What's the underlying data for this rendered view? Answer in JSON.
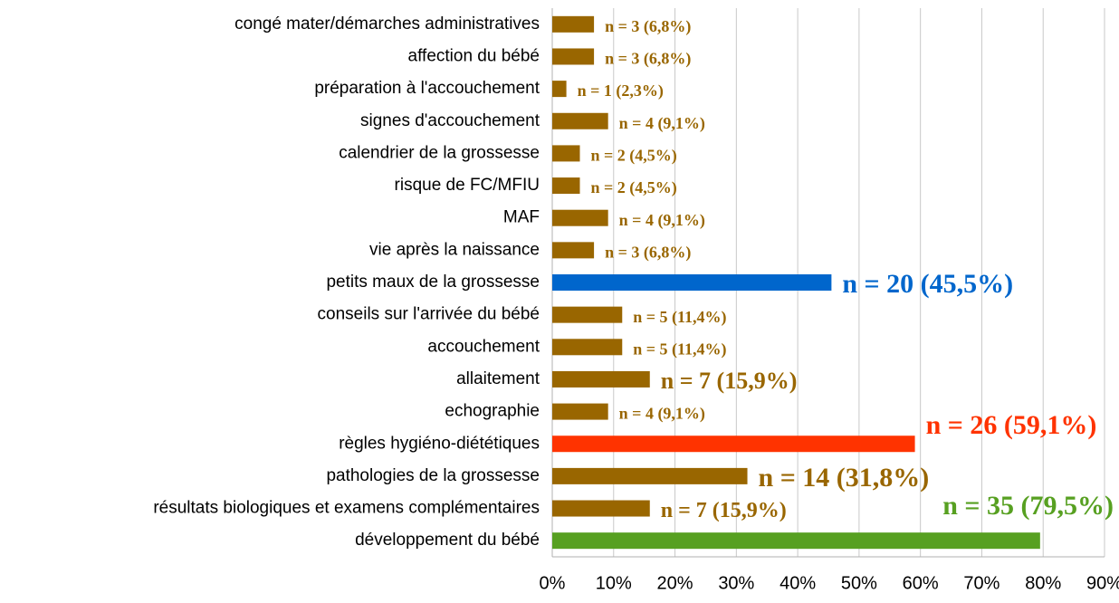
{
  "chart_data": {
    "type": "bar",
    "orientation": "horizontal",
    "categories": [
      "congé mater/démarches administratives",
      "affection du bébé",
      "préparation à l'accouchement",
      "signes d'accouchement",
      "calendrier de la grossesse",
      "risque de FC/MFIU",
      "MAF",
      "vie après la naissance",
      "petits maux de la grossesse",
      "conseils sur l'arrivée du bébé",
      "accouchement",
      "allaitement",
      "echographie",
      "règles hygiéno-diététiques",
      "pathologies de la grossesse",
      "résultats biologiques et examens complémentaires",
      "développement du bébé"
    ],
    "values": [
      6.8,
      6.8,
      2.3,
      9.1,
      4.5,
      4.5,
      9.1,
      6.8,
      45.5,
      11.4,
      11.4,
      15.9,
      9.1,
      59.1,
      31.8,
      15.9,
      79.5
    ],
    "value_labels": [
      "n = 3 (6,8%)",
      "n = 3 (6,8%)",
      "n = 1 (2,3%)",
      "n = 4 (9,1%)",
      "n = 2 (4,5%)",
      "n = 2 (4,5%)",
      "n = 4 (9,1%)",
      "n = 3 (6,8%)",
      "n = 20 (45,5%)",
      "n = 5 (11,4%)",
      "n = 5 (11,4%)",
      "n = 7 (15,9%)",
      "n = 4 (9,1%)",
      "n = 26 (59,1%)",
      "n = 14 (31,8%)",
      "n = 7 (15,9%)",
      "n = 35 (79,5%)"
    ],
    "colors": [
      "#996600",
      "#996600",
      "#996600",
      "#996600",
      "#996600",
      "#996600",
      "#996600",
      "#996600",
      "#0066cc",
      "#996600",
      "#996600",
      "#996600",
      "#996600",
      "#ff3300",
      "#996600",
      "#996600",
      "#57a021"
    ],
    "xlim": [
      0,
      90
    ],
    "xticks": [
      {
        "value": 0,
        "label": "0%"
      },
      {
        "value": 10,
        "label": "10%"
      },
      {
        "value": 20,
        "label": "20%"
      },
      {
        "value": 30,
        "label": "30%"
      },
      {
        "value": 40,
        "label": "40%"
      },
      {
        "value": 50,
        "label": "50%"
      },
      {
        "value": 60,
        "label": "60%"
      },
      {
        "value": 70,
        "label": "70%"
      },
      {
        "value": 80,
        "label": "80%"
      },
      {
        "value": 90,
        "label": "90%"
      }
    ],
    "grid": true
  }
}
